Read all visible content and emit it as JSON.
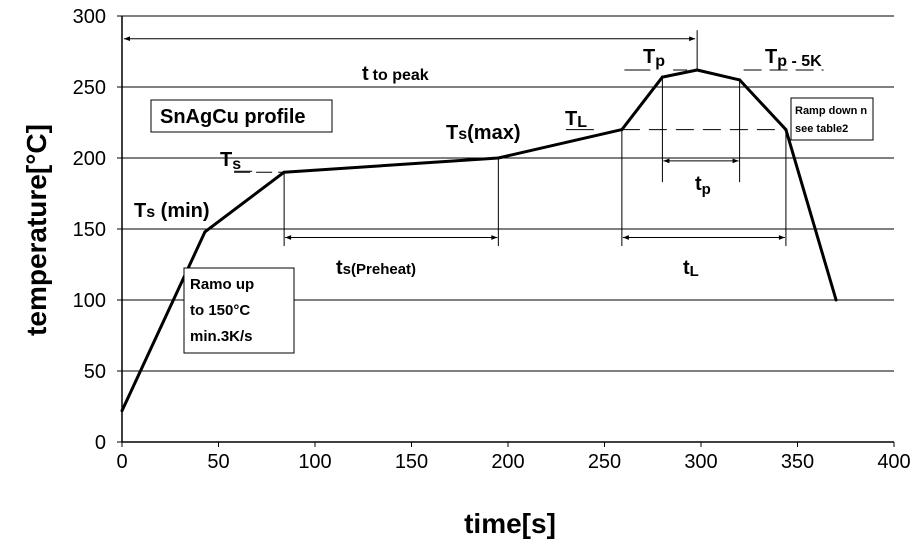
{
  "chart_data": {
    "type": "line",
    "xlabel": "time[s]",
    "ylabel": "temperature[°C]",
    "xlim": [
      0,
      400
    ],
    "ylim": [
      0,
      300
    ],
    "xticks": [
      0,
      50,
      100,
      150,
      200,
      250,
      300,
      350,
      400
    ],
    "yticks": [
      0,
      50,
      100,
      150,
      200,
      250,
      300
    ],
    "grid": "horizontal",
    "series": [
      {
        "x": [
          0,
          43,
          84,
          195,
          259,
          280,
          298,
          320,
          344,
          370
        ],
        "y": [
          22,
          148,
          190,
          200,
          220,
          257,
          262,
          255,
          220,
          100
        ]
      }
    ],
    "annotations": {
      "t_to_peak_main": "t",
      "t_to_peak_sub": "to peak",
      "profile_box": "SnAgCu profile",
      "ts_max_main": "T",
      "ts_max_sub": "s",
      "ts_max_tail": "(max)",
      "ts_main": "T",
      "ts_sub": "s",
      "ts_min_main": "T",
      "ts_min_sub": "s",
      "ts_min_tail": " (min)",
      "tl_main": "T",
      "tl_sub": "L",
      "tp_main": "T",
      "tp_sub": "p",
      "tp5_main": "T",
      "tp5_sub": "p",
      "tp5_tail": " - 5K",
      "ramp_up_lines": [
        "Ramo up",
        "to 150°C",
        "min.3K/s"
      ],
      "ramp_down_lines": [
        "Ramp down n",
        "see table2"
      ],
      "ts_preheat_main": "t",
      "ts_preheat_sub": "s(Preheat)",
      "tl_time_main": "t",
      "tl_time_sub": "L",
      "tp_time_main": "t",
      "tp_time_sub": "p"
    }
  }
}
